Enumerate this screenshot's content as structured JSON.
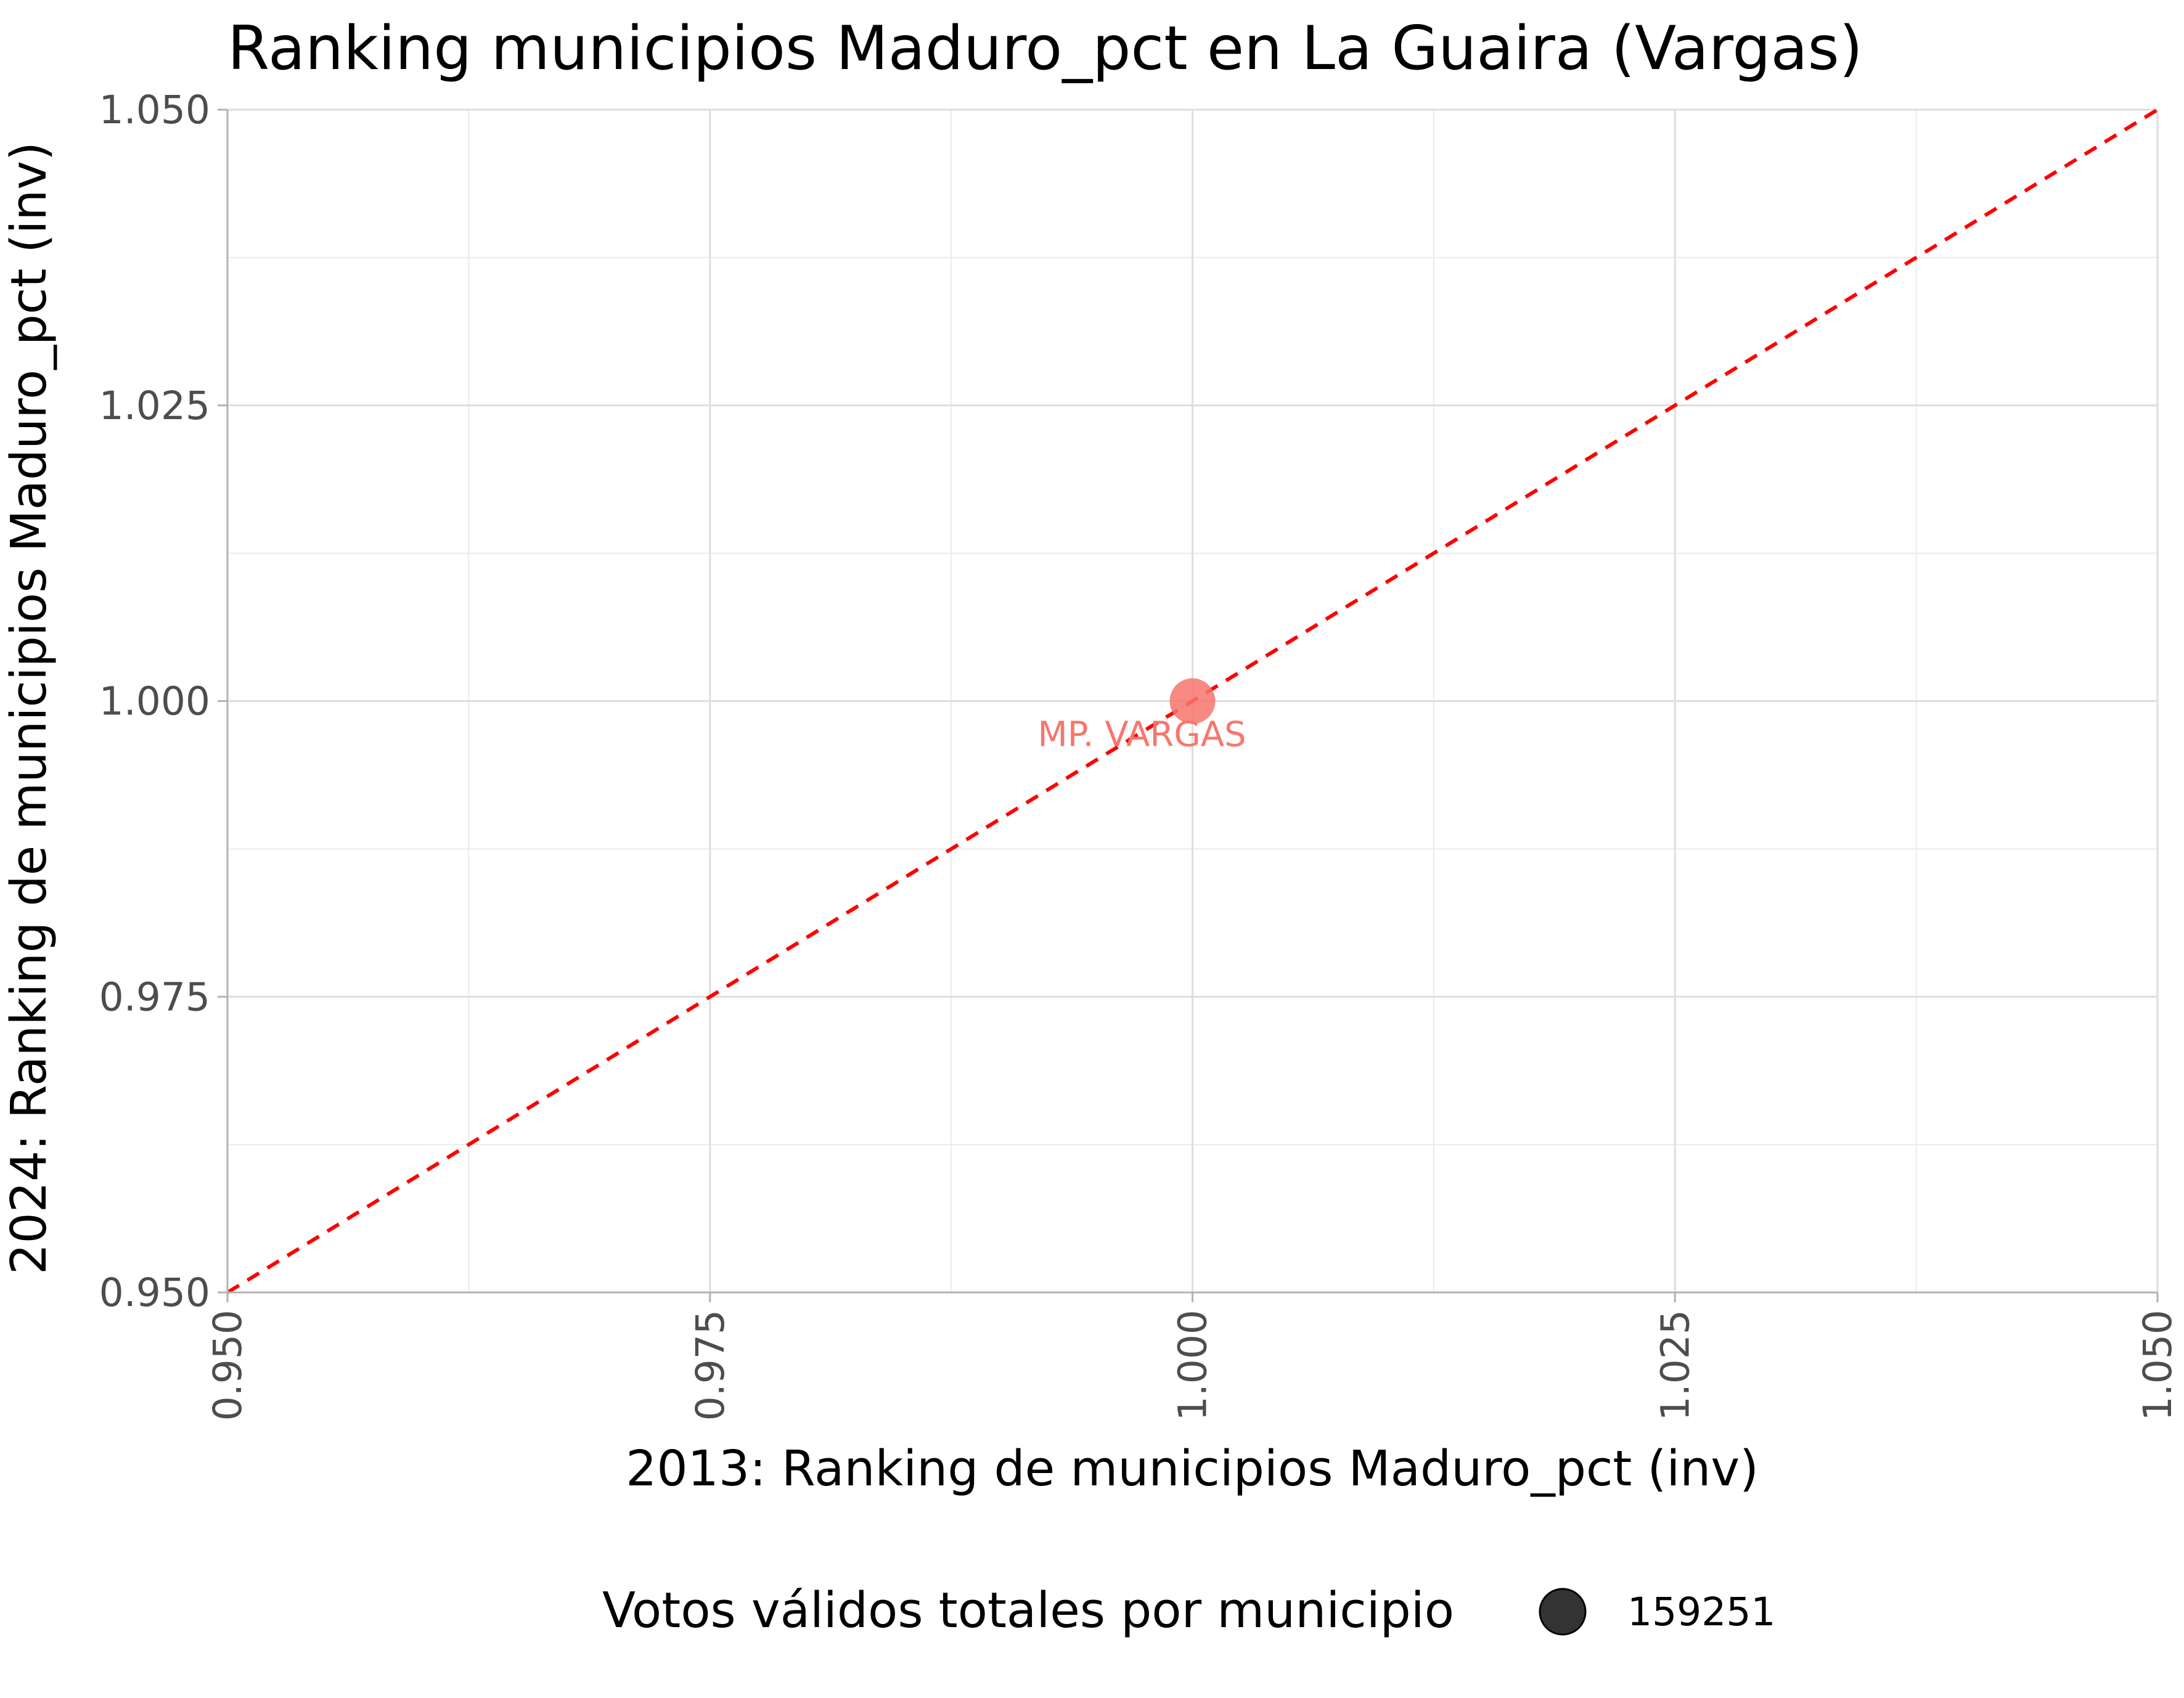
{
  "chart_data": {
    "type": "scatter",
    "title": "Ranking municipios Maduro_pct en La Guaira (Vargas)",
    "xlabel": "2013: Ranking de municipios Maduro_pct (inv)",
    "ylabel": "2024: Ranking de municipios Maduro_pct (inv)",
    "xlim": [
      0.95,
      1.05
    ],
    "ylim": [
      0.95,
      1.05
    ],
    "x_ticks": [
      "0.950",
      "0.975",
      "1.000",
      "1.025",
      "1.050"
    ],
    "y_ticks": [
      "0.950",
      "0.975",
      "1.000",
      "1.025",
      "1.050"
    ],
    "x_tick_values": [
      0.95,
      0.975,
      1.0,
      1.025,
      1.05
    ],
    "y_tick_values": [
      0.95,
      0.975,
      1.0,
      1.025,
      1.05
    ],
    "grid": true,
    "reference_line": {
      "type": "identity",
      "style": "dashed",
      "color": "#ff0000"
    },
    "points": [
      {
        "label": "MP. VARGAS",
        "x": 1.0,
        "y": 1.0,
        "size": 159251,
        "color": "#f8766d"
      }
    ],
    "legend": {
      "title": "Votos válidos totales por municipio",
      "placement": "bottom",
      "entries": [
        "159251"
      ],
      "marker_color": "#333333"
    }
  }
}
